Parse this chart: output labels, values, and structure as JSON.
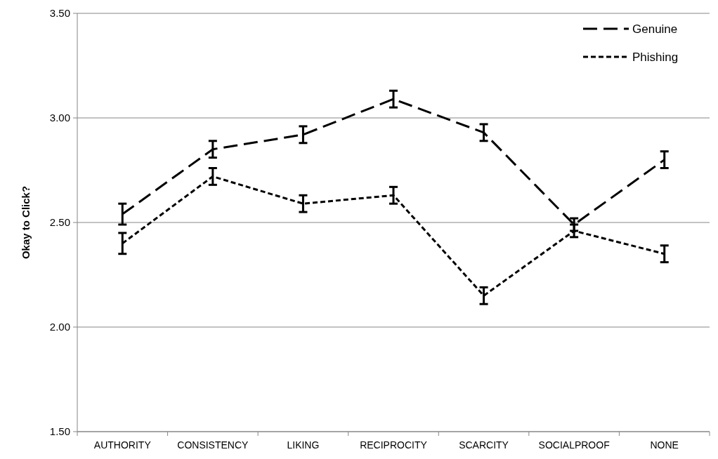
{
  "chart_data": {
    "type": "line",
    "ylabel": "Okay to Click?",
    "categories": [
      "AUTHORITY",
      "CONSISTENCY",
      "LIKING",
      "RECIPROCITY",
      "SCARCITY",
      "SOCIALPROOF",
      "NONE"
    ],
    "series": [
      {
        "name": "Genuine",
        "color": "#000000",
        "line_style": "dashed",
        "values": [
          2.54,
          2.85,
          2.92,
          3.09,
          2.93,
          2.49,
          2.8
        ],
        "errors": [
          0.05,
          0.04,
          0.04,
          0.04,
          0.04,
          0.03,
          0.04
        ]
      },
      {
        "name": "Phishing",
        "color": "#000000",
        "line_style": "dotted",
        "values": [
          2.4,
          2.72,
          2.59,
          2.63,
          2.15,
          2.46,
          2.35
        ],
        "errors": [
          0.05,
          0.04,
          0.04,
          0.04,
          0.04,
          0.03,
          0.04
        ]
      }
    ],
    "ylim": [
      1.5,
      3.5
    ],
    "yticks": [
      {
        "value": 1.5,
        "label": "1.50"
      },
      {
        "value": 2,
        "label": "2.00"
      },
      {
        "value": 2.5,
        "label": "2.50"
      },
      {
        "value": 3,
        "label": "3.00"
      },
      {
        "value": 3.5,
        "label": "3.50"
      }
    ],
    "grid": "y",
    "legend": "top right",
    "marker": "none"
  }
}
